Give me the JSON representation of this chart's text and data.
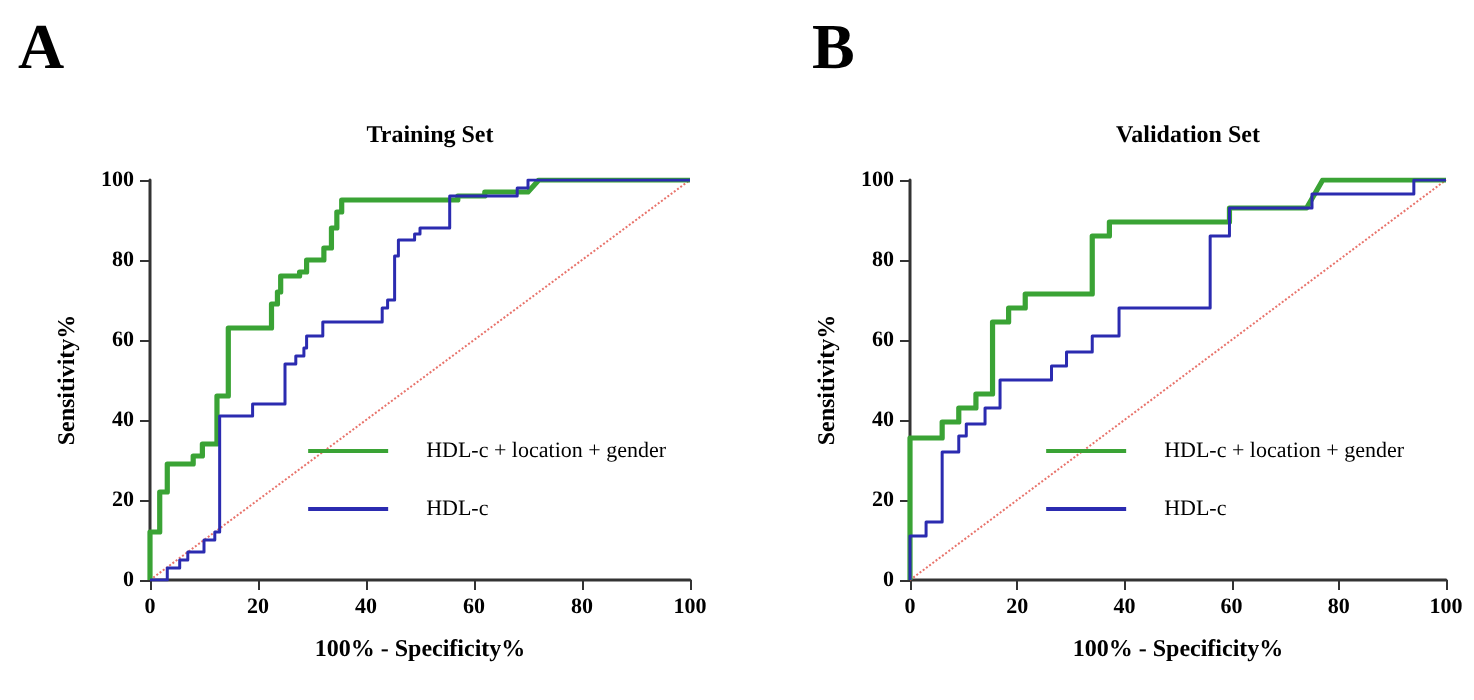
{
  "chart_data": [
    {
      "type": "line",
      "title": "Training Set",
      "xlabel": "100% - Specificity%",
      "ylabel": "Sensitivity%",
      "annotations": [
        "A"
      ],
      "xlim": [
        0,
        100
      ],
      "ylim": [
        0,
        100
      ],
      "xticks": [
        0,
        20,
        40,
        60,
        80,
        100
      ],
      "yticks": [
        0,
        20,
        40,
        60,
        80,
        100
      ],
      "grid": false,
      "legend": "bottom right",
      "marker": "none",
      "series": [
        {
          "name": "HDL-c + location + gender",
          "color": "#3aa335",
          "line_style": "solid",
          "x": [
            0,
            0,
            1.8,
            1.8,
            3.2,
            3.2,
            8,
            8,
            9.7,
            9.7,
            12.4,
            12.4,
            14.5,
            14.5,
            22.5,
            22.5,
            23.6,
            23.6,
            24.2,
            24.2,
            27.7,
            27.7,
            29,
            29,
            32.2,
            32.2,
            33.6,
            33.6,
            34.6,
            34.6,
            35.5,
            35.5,
            57,
            57,
            62,
            62,
            70,
            72,
            100
          ],
          "values": [
            0,
            12,
            12,
            22,
            22,
            29,
            29,
            31,
            31,
            34,
            34,
            46,
            46,
            63,
            63,
            69,
            69,
            72,
            72,
            76,
            76,
            77,
            77,
            80,
            80,
            83,
            83,
            88,
            88,
            92,
            92,
            95,
            95,
            96,
            96,
            97,
            97,
            100,
            100
          ]
        },
        {
          "name": "HDL-c",
          "color": "#2b2bb0",
          "line_style": "solid",
          "x": [
            0,
            3.2,
            3.2,
            5.5,
            5.5,
            7,
            7,
            10,
            10,
            12,
            12,
            12.9,
            12.9,
            19,
            19,
            25,
            25,
            27,
            27,
            28.5,
            28.5,
            29,
            29,
            32,
            32,
            43,
            43,
            44,
            44,
            45.3,
            45.3,
            46,
            46,
            49,
            49,
            50,
            50,
            55.5,
            55.5,
            68,
            68,
            70,
            70,
            100
          ],
          "values": [
            0,
            0,
            3,
            3,
            5,
            5,
            7,
            7,
            10,
            10,
            12,
            12,
            41,
            41,
            44,
            44,
            54,
            54,
            56,
            56,
            58,
            58,
            61,
            61,
            64.5,
            64.5,
            68,
            68,
            70,
            70,
            81,
            81,
            85,
            85,
            86.5,
            86.5,
            88,
            88,
            96,
            96,
            98,
            98,
            100,
            100
          ]
        },
        {
          "color": "#e8736b",
          "line_style": "dotted",
          "x": [
            0,
            100
          ],
          "values": [
            0,
            100
          ]
        }
      ]
    },
    {
      "type": "line",
      "title": "Validation Set",
      "xlabel": "100% - Specificity%",
      "ylabel": "Sensitivity%",
      "annotations": [
        "B"
      ],
      "xlim": [
        0,
        100
      ],
      "ylim": [
        0,
        100
      ],
      "xticks": [
        0,
        20,
        40,
        60,
        80,
        100
      ],
      "yticks": [
        0,
        20,
        40,
        60,
        80,
        100
      ],
      "grid": false,
      "legend": "bottom right",
      "marker": "none",
      "series": [
        {
          "name": "HDL-c + location + gender",
          "color": "#3aa335",
          "line_style": "solid",
          "x": [
            0,
            0,
            6,
            6,
            9.1,
            9.1,
            12.3,
            12.3,
            15.4,
            15.4,
            18.4,
            18.4,
            21.5,
            21.5,
            34,
            34,
            37.2,
            37.2,
            59.6,
            59.6,
            74,
            77,
            100
          ],
          "values": [
            0,
            35.5,
            35.5,
            39.5,
            39.5,
            43,
            43,
            46.5,
            46.5,
            64.5,
            64.5,
            68,
            68,
            71.5,
            71.5,
            86,
            86,
            89.5,
            89.5,
            93,
            93,
            100,
            100
          ]
        },
        {
          "name": "HDL-c",
          "color": "#2b2bb0",
          "line_style": "solid",
          "x": [
            0,
            0,
            3,
            3,
            6,
            6,
            9.1,
            9.1,
            10.5,
            10.5,
            14,
            14,
            16.8,
            16.8,
            26.4,
            26.4,
            29.2,
            29.2,
            34,
            34,
            39,
            39,
            56,
            56,
            59.6,
            59.6,
            75,
            75,
            94,
            94,
            100
          ],
          "values": [
            0,
            11,
            11,
            14.5,
            14.5,
            32,
            32,
            36,
            36,
            39,
            39,
            43,
            43,
            50,
            50,
            53.5,
            53.5,
            57,
            57,
            61,
            61,
            68,
            68,
            86,
            86,
            93,
            93,
            96.5,
            96.5,
            100,
            100
          ]
        },
        {
          "color": "#e8736b",
          "line_style": "dotted",
          "x": [
            0,
            100
          ],
          "values": [
            0,
            100
          ]
        }
      ]
    }
  ]
}
